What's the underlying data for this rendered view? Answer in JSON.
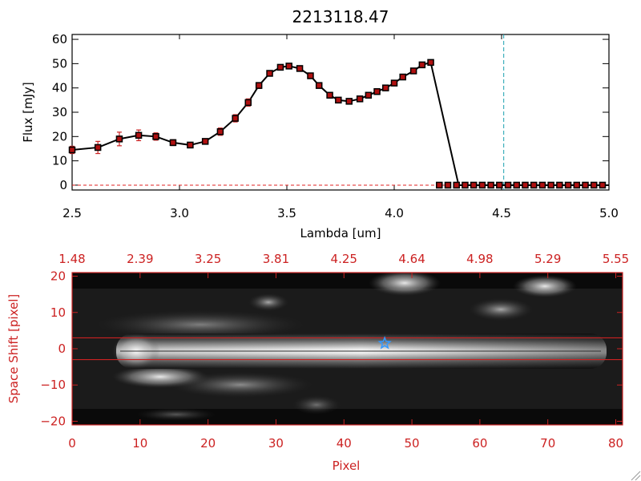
{
  "colors": {
    "spectrum_line": "#000000",
    "marker_fill": "#b01010",
    "errorbar": "#cc2222",
    "cutoff_line": "#1aa0b0",
    "zero_line": "#e02020",
    "red_axis": "#cc2222",
    "trace_box": "#cc2222",
    "star": "#3399ff"
  },
  "chart_data": [
    {
      "type": "line",
      "title": "2213118.47",
      "xlabel": "Lambda [um]",
      "ylabel": "Flux [mJy]",
      "xlim": [
        2.5,
        5.0
      ],
      "ylim": [
        -2,
        62
      ],
      "x_ticks": [
        2.5,
        3.0,
        3.5,
        4.0,
        4.5,
        5.0
      ],
      "x_tick_labels": [
        "2.5",
        "3.0",
        "3.5",
        "4.0",
        "4.5",
        "5.0"
      ],
      "y_ticks": [
        0,
        10,
        20,
        30,
        40,
        50,
        60
      ],
      "y_tick_labels": [
        "0",
        "10",
        "20",
        "30",
        "40",
        "50",
        "60"
      ],
      "series": [
        {
          "x": [
            2.5,
            2.62,
            2.72,
            2.81,
            2.89,
            2.97,
            3.05,
            3.12,
            3.19,
            3.26,
            3.32,
            3.37,
            3.42,
            3.47,
            3.51,
            3.56,
            3.61,
            3.65,
            3.7,
            3.74,
            3.79,
            3.84,
            3.88,
            3.92,
            3.96,
            4.0,
            4.04,
            4.09,
            4.13,
            4.17,
            4.21,
            4.25,
            4.29,
            4.33,
            4.37,
            4.41,
            4.45,
            4.49,
            4.53,
            4.57,
            4.61,
            4.65,
            4.69,
            4.73,
            4.77,
            4.81,
            4.85,
            4.89,
            4.93,
            4.97
          ],
          "y": [
            14.5,
            15.5,
            19.0,
            20.5,
            20.0,
            17.5,
            16.5,
            18.0,
            22.0,
            27.5,
            34.0,
            41.0,
            46.0,
            48.5,
            49.0,
            48.0,
            45.0,
            41.0,
            37.0,
            35.0,
            34.5,
            35.5,
            37.0,
            38.5,
            40.0,
            42.0,
            44.5,
            47.0,
            49.5,
            50.5,
            0,
            0,
            0,
            0,
            0,
            0,
            0,
            0,
            0,
            0,
            0,
            0,
            0,
            0,
            0,
            0,
            0,
            0,
            0,
            0
          ],
          "yerr": [
            1.5,
            2.5,
            2.8,
            2.2,
            1.5,
            1.2,
            1.0,
            1.0,
            1.5,
            1.5,
            1.5,
            1.2,
            1.0,
            1.0,
            1.0,
            1.0,
            1.0,
            1.0,
            1.0,
            1.0,
            1.0,
            1.0,
            1.0,
            1.0,
            1.0,
            1.0,
            1.0,
            1.0,
            1.0,
            1.0,
            0,
            0,
            0,
            0,
            0,
            0,
            0,
            0,
            0,
            0,
            0,
            0,
            0,
            0,
            0,
            0,
            0,
            0,
            0,
            0
          ]
        }
      ],
      "drop_to_zero_x": 4.3,
      "cutoff_line_x": 4.51,
      "zero_line": true
    },
    {
      "type": "heatmap",
      "xlabel": "Pixel",
      "ylabel": "Space Shift [pixel]",
      "xlim": [
        0,
        81
      ],
      "ylim": [
        -21,
        21
      ],
      "x_ticks": [
        0,
        10,
        20,
        30,
        40,
        50,
        60,
        70,
        80
      ],
      "x_tick_labels": [
        "0",
        "10",
        "20",
        "30",
        "40",
        "50",
        "60",
        "70",
        "80"
      ],
      "y_ticks": [
        -20,
        -10,
        0,
        10,
        20
      ],
      "y_tick_labels": [
        "−20",
        "−10",
        "0",
        "10",
        "20"
      ],
      "top_axis_ticks": [
        0,
        10,
        20,
        30,
        40,
        50,
        60,
        70,
        80
      ],
      "top_axis_labels": [
        "1.48",
        "2.39",
        "3.25",
        "3.81",
        "4.25",
        "4.64",
        "4.98",
        "5.29",
        "5.55"
      ],
      "trace_box_y": [
        -3,
        3
      ],
      "star_position": [
        46,
        1.5
      ]
    }
  ]
}
